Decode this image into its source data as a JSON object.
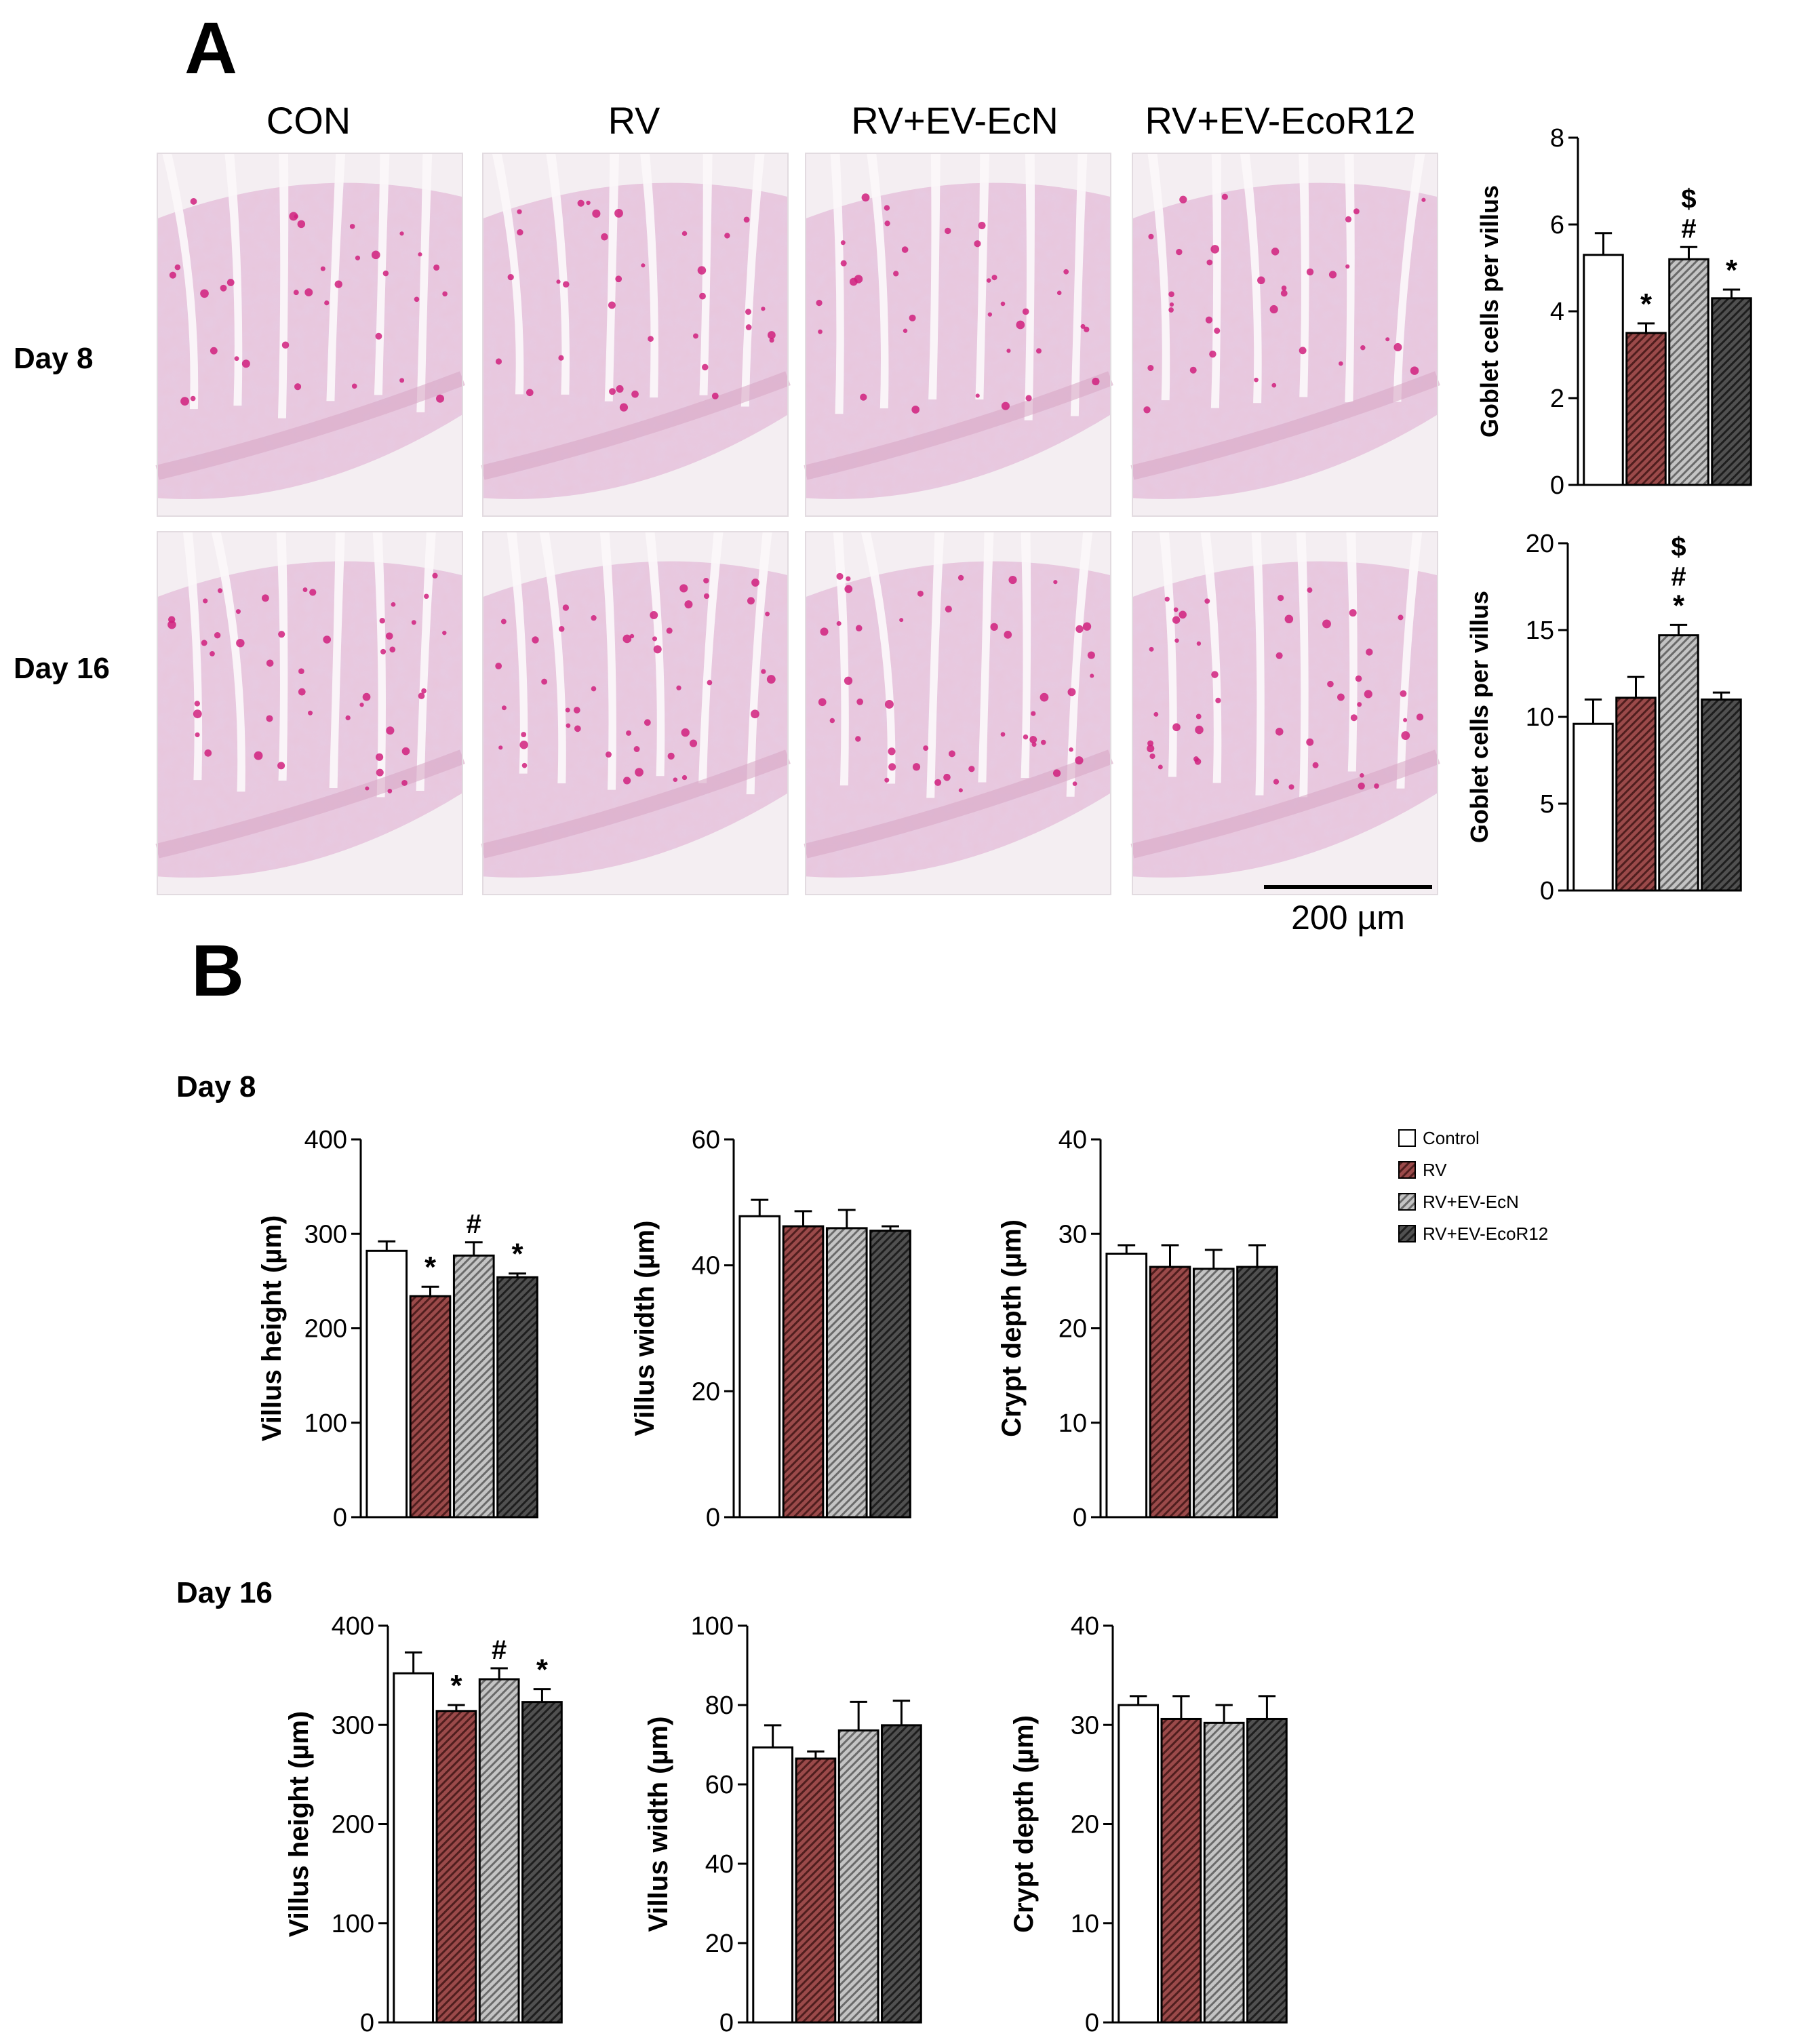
{
  "panel_a": {
    "letter": "A",
    "column_labels": [
      "CON",
      "RV",
      "RV+EV-EcN",
      "RV+EV-EcoR12"
    ],
    "row_labels": [
      "Day 8",
      "Day 16"
    ],
    "scale_bar_label": "200 µm"
  },
  "panel_b": {
    "letter": "B",
    "row_labels": [
      "Day 8",
      "Day 16"
    ]
  },
  "legend": {
    "entries": [
      "Control",
      "RV",
      "RV+EV-EcN",
      "RV+EV-EcoR12"
    ]
  },
  "colors": {
    "control": "#ffffff",
    "rv": "#9b4a4a",
    "rv_ev_ecn": "#b8b8b8",
    "rv_ev_ecor12": "#444444",
    "micrograph_base": "#e9c6dc",
    "micrograph_stain": "#d0207e"
  },
  "chart_data": [
    {
      "type": "bar",
      "panel": "A-Day 8",
      "ylabel": "Goblet cells per villus",
      "ylim": [
        0,
        8
      ],
      "yticks": [
        0,
        2,
        4,
        6,
        8
      ],
      "categories": [
        "Control",
        "RV",
        "RV+EV-EcN",
        "RV+EV-EcoR12"
      ],
      "values": [
        5.3,
        3.5,
        5.2,
        4.3
      ],
      "errors": [
        0.5,
        0.22,
        0.28,
        0.2
      ],
      "annotations": [
        [],
        [
          "*"
        ],
        [
          "#",
          "$"
        ],
        [
          "*"
        ]
      ]
    },
    {
      "type": "bar",
      "panel": "A-Day 16",
      "ylabel": "Goblet cells per villus",
      "ylim": [
        0,
        20
      ],
      "yticks": [
        0,
        5,
        10,
        15,
        20
      ],
      "categories": [
        "Control",
        "RV",
        "RV+EV-EcN",
        "RV+EV-EcoR12"
      ],
      "values": [
        9.6,
        11.1,
        14.7,
        11.0
      ],
      "errors": [
        1.4,
        1.2,
        0.6,
        0.4
      ],
      "annotations": [
        [],
        [],
        [
          "*",
          "#",
          "$"
        ],
        []
      ]
    },
    {
      "type": "bar",
      "panel": "B-Day 8",
      "ylabel": "Villus height (µm)",
      "ylim": [
        0,
        400
      ],
      "yticks": [
        0,
        100,
        200,
        300,
        400
      ],
      "categories": [
        "Control",
        "RV",
        "RV+EV-EcN",
        "RV+EV-EcoR12"
      ],
      "values": [
        282,
        234,
        277,
        254
      ],
      "errors": [
        10,
        10,
        14,
        4
      ],
      "annotations": [
        [],
        [
          "*"
        ],
        [
          "#"
        ],
        [
          "*"
        ]
      ]
    },
    {
      "type": "bar",
      "panel": "B-Day 8",
      "ylabel": "Villus width (µm)",
      "ylim": [
        0,
        60
      ],
      "yticks": [
        0,
        20,
        40,
        60
      ],
      "categories": [
        "Control",
        "RV",
        "RV+EV-EcN",
        "RV+EV-EcoR12"
      ],
      "values": [
        47.8,
        46.2,
        45.9,
        45.5
      ],
      "errors": [
        2.6,
        2.4,
        2.9,
        0.7
      ],
      "annotations": [
        [],
        [],
        [],
        []
      ]
    },
    {
      "type": "bar",
      "panel": "B-Day 8",
      "ylabel": "Crypt depth  (µm)",
      "ylim": [
        0,
        40
      ],
      "yticks": [
        0,
        10,
        20,
        30,
        40
      ],
      "categories": [
        "Control",
        "RV",
        "RV+EV-EcN",
        "RV+EV-EcoR12"
      ],
      "values": [
        27.9,
        26.5,
        26.3,
        26.5
      ],
      "errors": [
        0.9,
        2.3,
        2.0,
        2.3
      ],
      "annotations": [
        [],
        [],
        [],
        []
      ]
    },
    {
      "type": "bar",
      "panel": "B-Day 16",
      "ylabel": "Villus height (µm)",
      "ylim": [
        0,
        400
      ],
      "yticks": [
        0,
        100,
        200,
        300,
        400
      ],
      "categories": [
        "Control",
        "RV",
        "RV+EV-EcN",
        "RV+EV-EcoR12"
      ],
      "values": [
        352,
        314,
        346,
        323
      ],
      "errors": [
        21,
        6,
        11,
        13
      ],
      "annotations": [
        [],
        [
          "*"
        ],
        [
          "#"
        ],
        [
          "*"
        ]
      ]
    },
    {
      "type": "bar",
      "panel": "B-Day 16",
      "ylabel": "Villus width (µm)",
      "ylim": [
        0,
        100
      ],
      "yticks": [
        0,
        20,
        40,
        60,
        80,
        100
      ],
      "categories": [
        "Control",
        "RV",
        "RV+EV-EcN",
        "RV+EV-EcoR12"
      ],
      "values": [
        69.3,
        66.5,
        73.6,
        74.9
      ],
      "errors": [
        5.6,
        1.8,
        7.2,
        6.2
      ],
      "annotations": [
        [],
        [],
        [],
        []
      ]
    },
    {
      "type": "bar",
      "panel": "B-Day 16",
      "ylabel": "Crypt depth  (µm)",
      "ylim": [
        0,
        40
      ],
      "yticks": [
        0,
        10,
        20,
        30,
        40
      ],
      "categories": [
        "Control",
        "RV",
        "RV+EV-EcN",
        "RV+EV-EcoR12"
      ],
      "values": [
        32.0,
        30.6,
        30.2,
        30.6
      ],
      "errors": [
        0.9,
        2.3,
        1.8,
        2.3
      ],
      "annotations": [
        [],
        [],
        [],
        []
      ]
    }
  ]
}
